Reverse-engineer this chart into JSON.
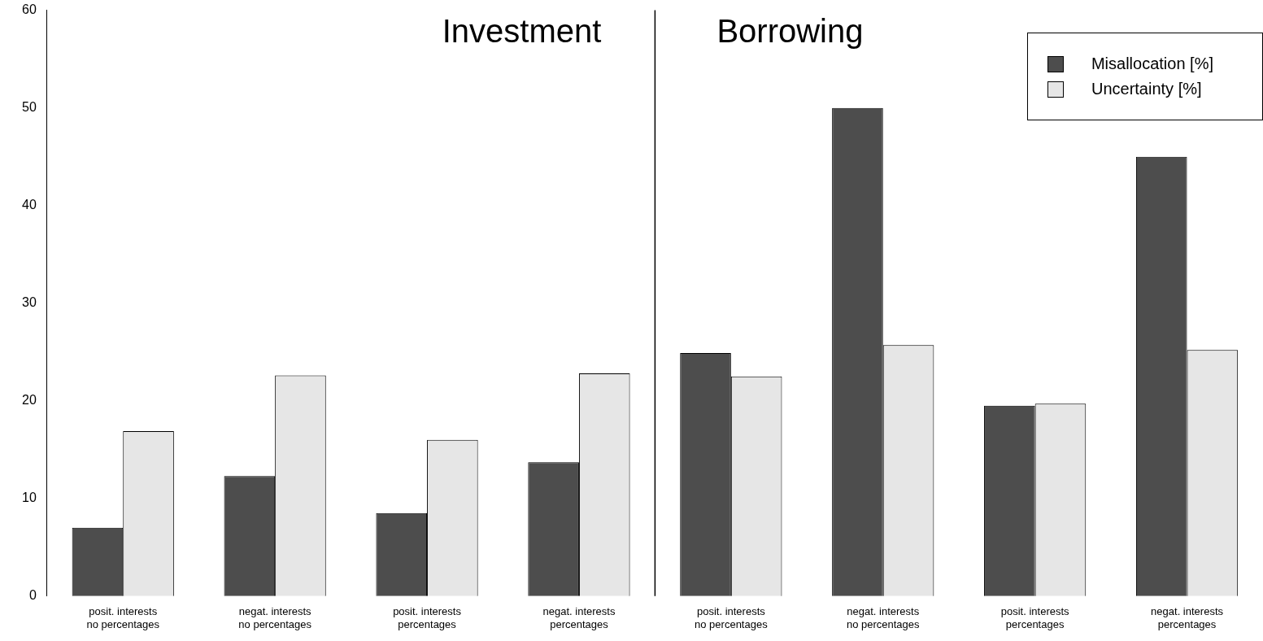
{
  "chart_data": {
    "type": "bar",
    "categories": [
      "posit. interests\nno percentages",
      "negat. interests\nno percentages",
      "posit. interests\npercentages",
      "negat. interests\npercentages",
      "posit. interests\nno percentages",
      "negat. interests\nno percentages",
      "posit. interests\npercentages",
      "negat. interests\npercentages"
    ],
    "series": [
      {
        "name": "Misallocation [%]",
        "color": "#4d4d4d",
        "values": [
          7.0,
          12.3,
          8.5,
          13.7,
          24.9,
          50.0,
          19.5,
          45.0
        ]
      },
      {
        "name": "Uncertainty [%]",
        "color": "#e6e6e6",
        "values": [
          16.9,
          22.6,
          16.0,
          22.8,
          22.5,
          25.7,
          19.7,
          25.2
        ]
      }
    ],
    "ylim": [
      0,
      60
    ],
    "yticks": [
      0,
      10,
      20,
      30,
      40,
      50,
      60
    ],
    "grid": false,
    "legend": "top right",
    "annotations": [
      "Investment",
      "Borrowing"
    ],
    "ref_lines": [
      {
        "axis": "x",
        "color": "#000000"
      }
    ]
  }
}
